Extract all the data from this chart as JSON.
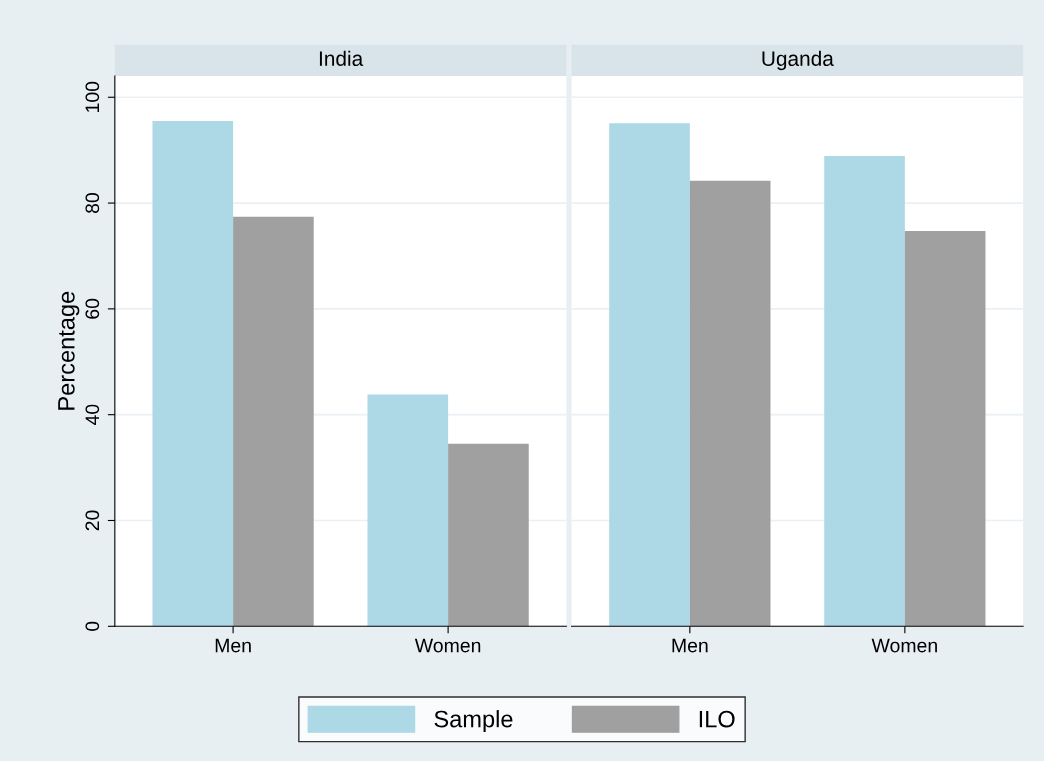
{
  "chart_data": [
    {
      "type": "bar",
      "title": "India",
      "ylabel": "Percentage",
      "categories": [
        "Men",
        "Women"
      ],
      "series": [
        {
          "name": "Sample",
          "color": "#add8e6",
          "values": [
            95.5,
            43.8
          ]
        },
        {
          "name": "ILO",
          "color": "#a0a0a0",
          "values": [
            77.4,
            34.5
          ]
        }
      ],
      "ylim": [
        0,
        104
      ],
      "yticks": [
        0,
        20,
        40,
        60,
        80,
        100
      ],
      "grid": "y",
      "legend": "bottom"
    },
    {
      "type": "bar",
      "title": "Uganda",
      "categories": [
        "Men",
        "Women"
      ],
      "series": [
        {
          "name": "Sample",
          "color": "#add8e6",
          "values": [
            95.1,
            88.9
          ]
        },
        {
          "name": "ILO",
          "color": "#a0a0a0",
          "values": [
            84.2,
            74.7
          ]
        }
      ],
      "ylim": [
        0,
        104
      ],
      "yticks": [
        0,
        20,
        40,
        60,
        80,
        100
      ],
      "grid": "y",
      "legend": "bottom",
      "tick_labels": "x"
    }
  ]
}
